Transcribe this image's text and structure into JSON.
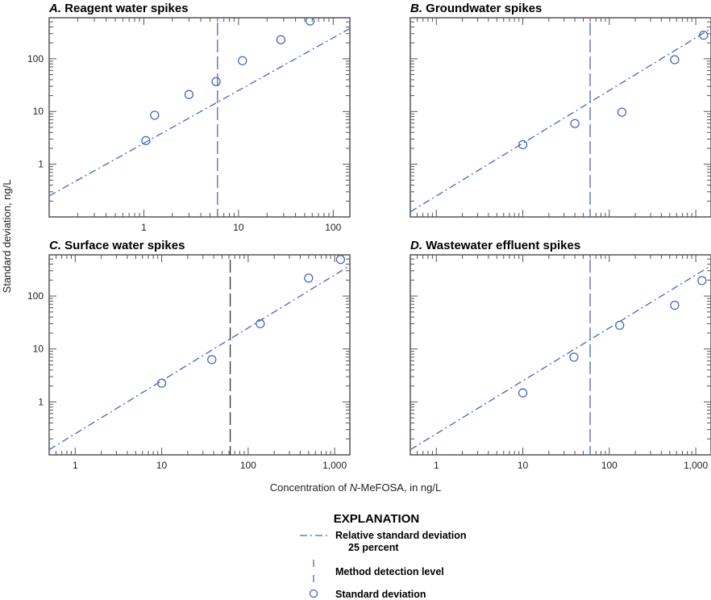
{
  "colors": {
    "data": "#4a66b8",
    "axis": "#555555",
    "mdl_c": "#333333"
  },
  "y_axis_label": "Standard deviation, ng/L",
  "x_axis_label_pre": "Concentration of ",
  "x_axis_label_italic": "N",
  "x_axis_label_post": "-MeFOSA, in ng/L",
  "legend": {
    "title": "EXPLANATION",
    "rsd_line1": "Relative standard deviation",
    "rsd_line2": "25 percent",
    "mdl": "Method detection level",
    "sd": "Standard deviation"
  },
  "chart_data": [
    {
      "type": "scatter",
      "letter": "A.",
      "title": "Reagent water spikes",
      "xscale": "log",
      "yscale": "log",
      "xlim": [
        0.1,
        150
      ],
      "ylim": [
        0.1,
        600
      ],
      "xticklabels": [
        "1",
        "10",
        "100"
      ],
      "xtickvalues": [
        1,
        10,
        100
      ],
      "yticklabels": [
        "1",
        "10",
        "100"
      ],
      "ytickvalues": [
        1,
        10,
        100
      ],
      "points": [
        [
          1.05,
          2.8
        ],
        [
          1.3,
          8.5
        ],
        [
          3,
          21
        ],
        [
          5.8,
          37
        ],
        [
          11,
          92
        ],
        [
          28,
          230
        ],
        [
          57,
          520
        ]
      ],
      "mdl": 6,
      "rsd_line": [
        [
          0.1,
          0.25
        ],
        [
          150,
          375
        ]
      ]
    },
    {
      "type": "scatter",
      "letter": "B.",
      "title": "Groundwater spikes",
      "xscale": "log",
      "yscale": "log",
      "xlim": [
        0.5,
        1500
      ],
      "ylim": [
        0.1,
        600
      ],
      "xticklabels": [],
      "xtickvalues": [],
      "yticklabels": [],
      "ytickvalues": [],
      "points": [
        [
          10,
          2.35
        ],
        [
          40,
          5.9
        ],
        [
          140,
          9.7
        ],
        [
          570,
          96
        ],
        [
          1230,
          280
        ]
      ],
      "mdl": 60,
      "rsd_line": [
        [
          0.5,
          0.125
        ],
        [
          1500,
          375
        ]
      ]
    },
    {
      "type": "scatter",
      "letter": "C.",
      "title": "Surface water spikes",
      "xscale": "log",
      "yscale": "log",
      "xlim": [
        0.5,
        1500
      ],
      "ylim": [
        0.1,
        600
      ],
      "xticklabels": [
        "1",
        "10",
        "100",
        "1,000"
      ],
      "xtickvalues": [
        1,
        10,
        100,
        1000
      ],
      "yticklabels": [
        "1",
        "10",
        "100"
      ],
      "ytickvalues": [
        1,
        10,
        100
      ],
      "points": [
        [
          10,
          2.26
        ],
        [
          38,
          6.3
        ],
        [
          138,
          30
        ],
        [
          500,
          218
        ],
        [
          1170,
          490
        ]
      ],
      "mdl": 62,
      "rsd_line": [
        [
          0.5,
          0.125
        ],
        [
          1500,
          375
        ]
      ]
    },
    {
      "type": "scatter",
      "letter": "D.",
      "title": "Wastewater effluent spikes",
      "xscale": "log",
      "yscale": "log",
      "xlim": [
        0.5,
        1500
      ],
      "ylim": [
        0.1,
        600
      ],
      "xticklabels": [
        "1",
        "10",
        "100",
        "1,000"
      ],
      "xtickvalues": [
        1,
        10,
        100,
        1000
      ],
      "yticklabels": [],
      "ytickvalues": [],
      "points": [
        [
          10,
          1.48
        ],
        [
          39,
          7.0
        ],
        [
          132,
          28
        ],
        [
          570,
          67
        ],
        [
          1180,
          196
        ]
      ],
      "mdl": 60,
      "rsd_line": [
        [
          0.5,
          0.125
        ],
        [
          1500,
          375
        ]
      ]
    }
  ]
}
